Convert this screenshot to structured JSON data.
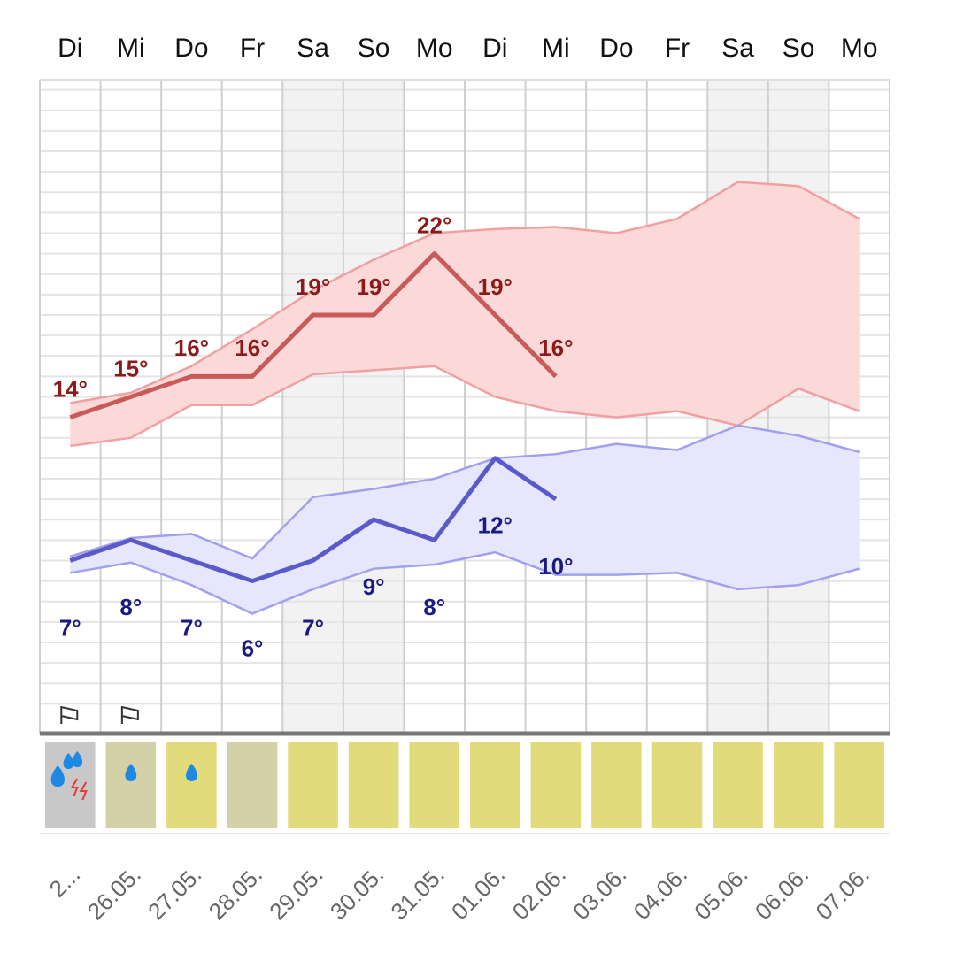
{
  "chart_data": {
    "type": "line",
    "days": [
      "Di",
      "Mi",
      "Do",
      "Fr",
      "Sa",
      "So",
      "Mo",
      "Di",
      "Mi",
      "Do",
      "Fr",
      "Sa",
      "So",
      "Mo"
    ],
    "categories": [
      "2...",
      "26.05.",
      "27.05.",
      "28.05.",
      "29.05.",
      "30.05.",
      "31.05.",
      "01.06.",
      "02.06.",
      "03.06.",
      "04.06.",
      "05.06.",
      "06.06.",
      "07.06."
    ],
    "ylim": [
      -1.5,
      30.5
    ],
    "yticks": [
      0,
      1,
      2,
      3,
      4,
      5,
      6,
      7,
      8,
      9,
      10,
      11,
      12,
      13,
      14,
      15,
      16,
      17,
      18,
      19,
      20,
      21,
      22,
      23,
      24,
      25,
      26,
      27,
      28,
      29,
      30
    ],
    "grid": true,
    "weekend_columns": [
      4,
      5,
      11,
      12
    ],
    "bands": [
      {
        "color": "#f0a0a0",
        "fill": "#fcd9d9",
        "upper": [
          14.7,
          15.2,
          16.5,
          18.3,
          20.2,
          21.7,
          23.0,
          23.2,
          23.3,
          23.0,
          23.7,
          25.5,
          25.3,
          23.7
        ],
        "lower": [
          12.6,
          13.0,
          14.6,
          14.6,
          16.1,
          16.3,
          16.5,
          15.0,
          14.3,
          14.0,
          14.3,
          13.6,
          15.4,
          14.3
        ]
      },
      {
        "color": "#a0a0ee",
        "fill": "#e6e6fc",
        "upper": [
          7.2,
          8.1,
          8.3,
          7.1,
          10.1,
          10.5,
          11.0,
          12.0,
          12.2,
          12.7,
          12.4,
          13.6,
          13.1,
          12.3
        ],
        "lower": [
          6.4,
          6.9,
          5.8,
          4.4,
          5.6,
          6.6,
          6.8,
          7.4,
          6.3,
          6.3,
          6.4,
          5.6,
          5.8,
          6.6
        ]
      }
    ],
    "series": [
      {
        "color": "#c85a5a",
        "label_color": "#8b1a1a",
        "values": [
          14,
          15,
          16,
          16,
          19,
          19,
          22,
          19,
          16,
          null,
          null,
          null,
          null,
          null
        ],
        "value_labels": [
          "14°",
          "15°",
          "16°",
          "16°",
          "19°",
          "19°",
          "22°",
          "19°",
          "16°",
          null,
          null,
          null,
          null,
          null
        ]
      },
      {
        "color": "#5a5ac8",
        "label_color": "#1a1a80",
        "values": [
          7,
          8,
          7,
          6,
          7,
          9,
          8,
          12,
          10,
          null,
          null,
          null,
          null,
          null
        ],
        "value_labels": [
          "7°",
          "8°",
          "7°",
          "6°",
          "7°",
          "9°",
          "8°",
          "12°",
          "10°",
          null,
          null,
          null,
          null,
          null
        ]
      }
    ],
    "weather_colors": [
      "#c8c8c8",
      "#d4d0a8",
      "#e2db7c",
      "#d4d0a8",
      "#e2db7c",
      "#e2db7c",
      "#e2db7c",
      "#e2db7c",
      "#e2db7c",
      "#e2db7c",
      "#e2db7c",
      "#e2db7c",
      "#e2db7c",
      "#e2db7c"
    ]
  }
}
